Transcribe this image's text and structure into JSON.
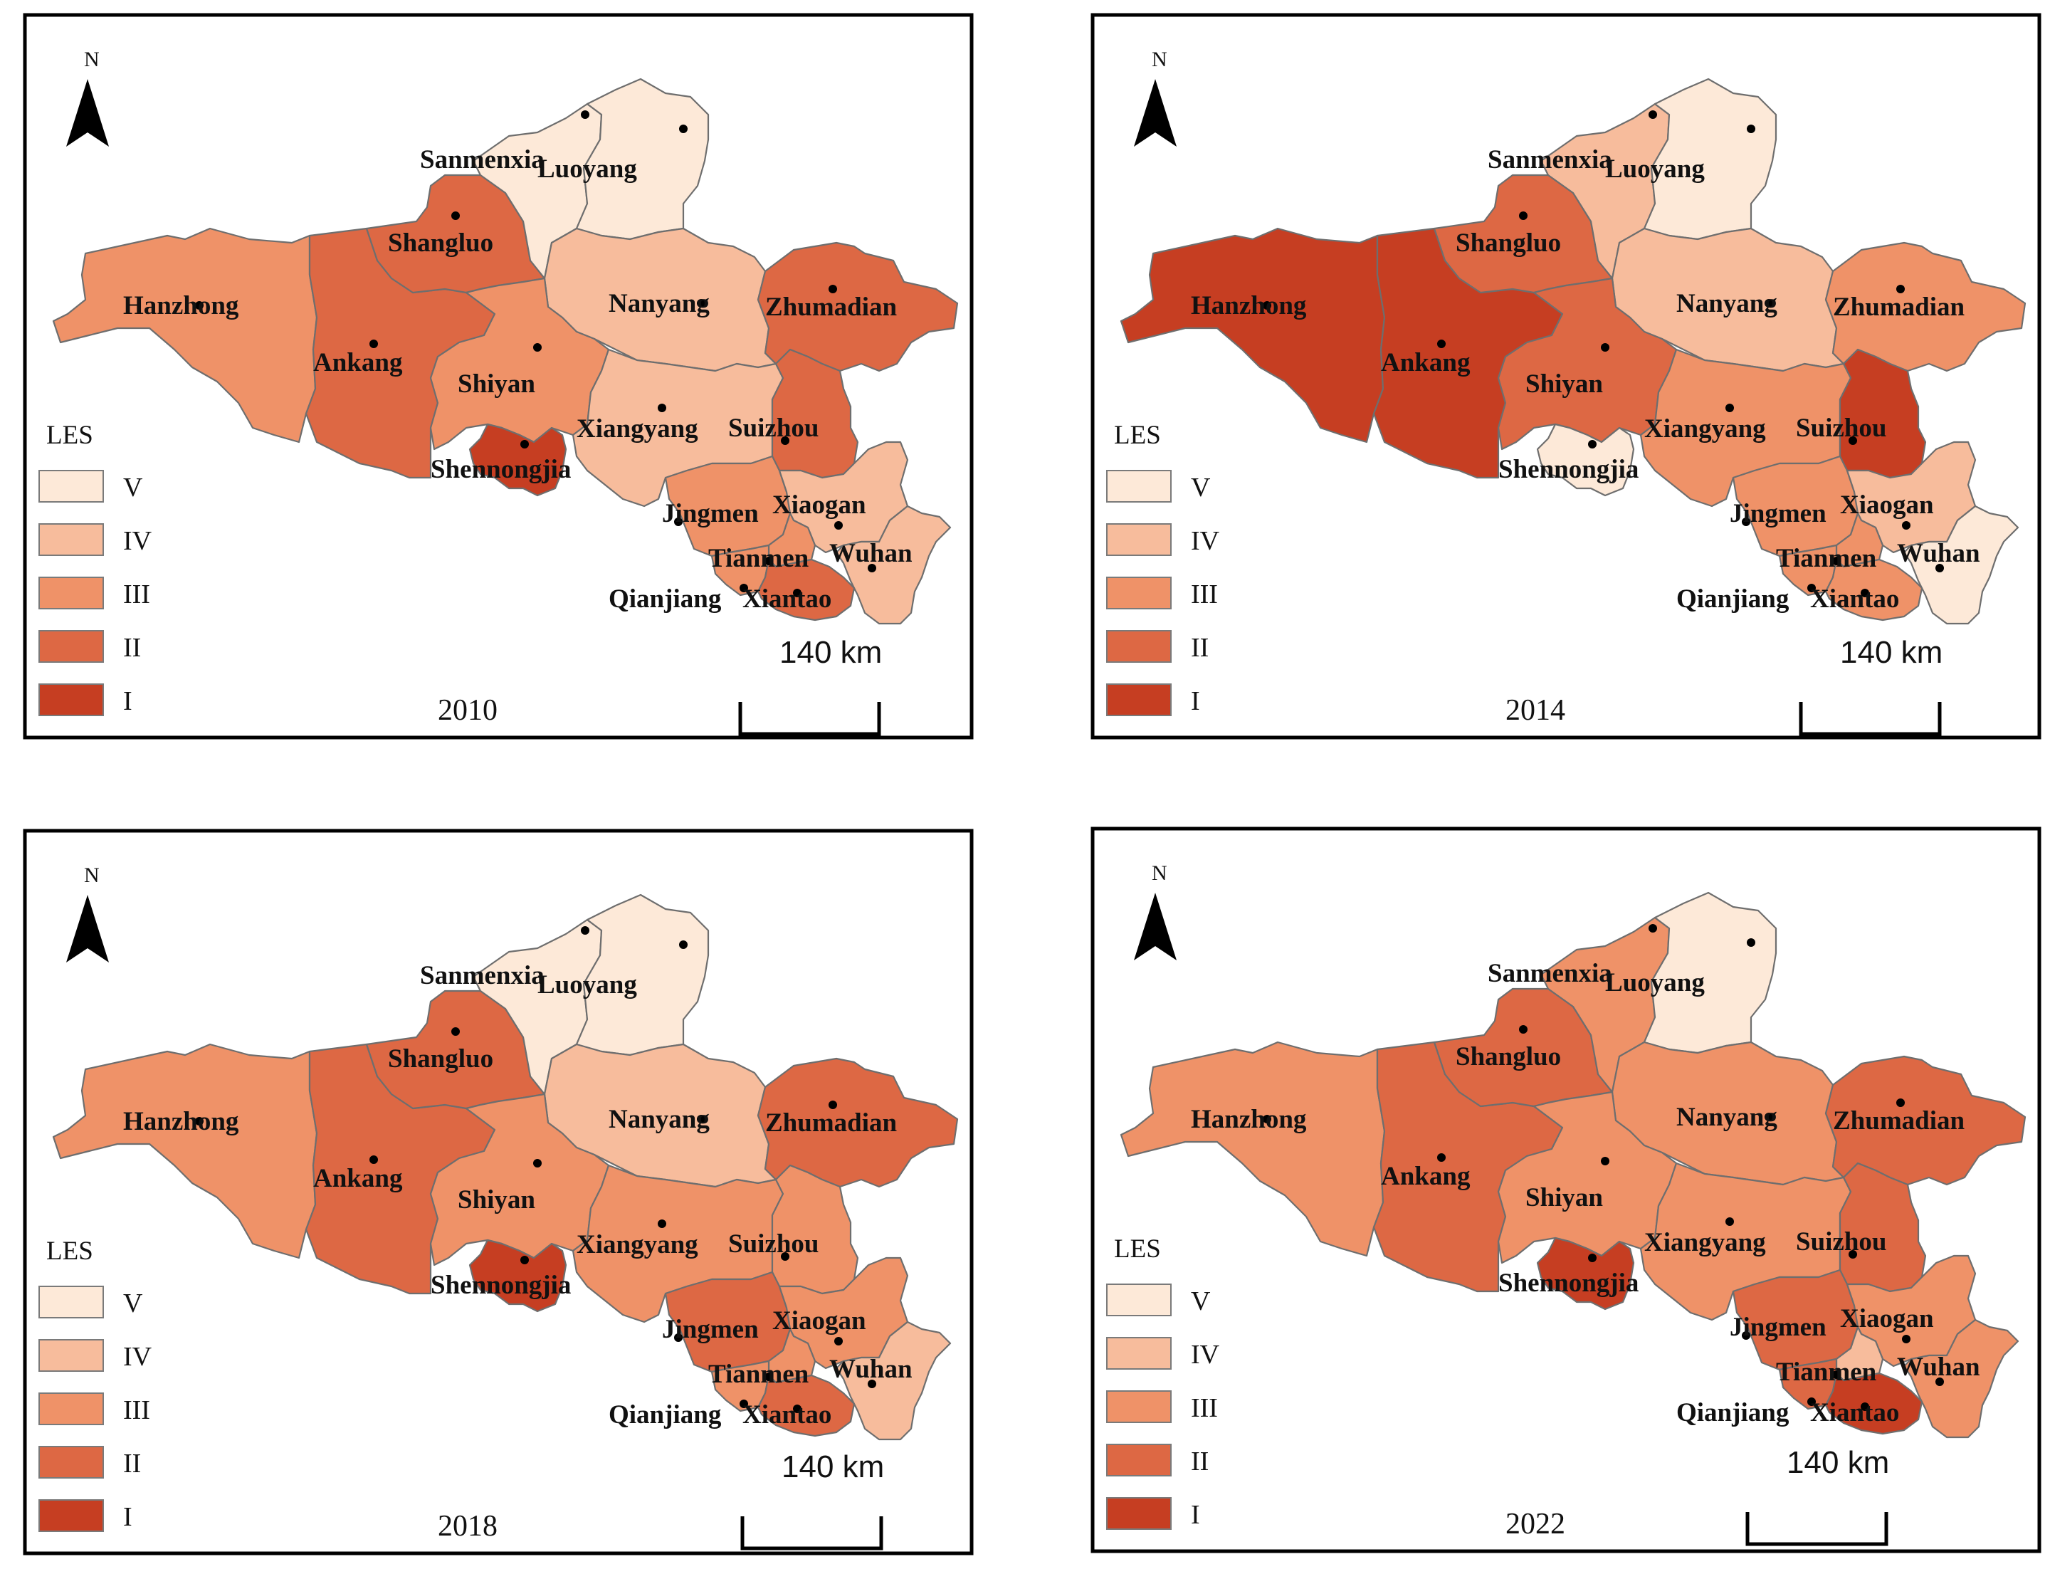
{
  "figure": {
    "legend_title": "LES",
    "scale_text": "140 km",
    "north_label": "N",
    "classes": [
      {
        "label": "V",
        "color": "#fde9d8"
      },
      {
        "label": "IV",
        "color": "#f7bc9c"
      },
      {
        "label": "III",
        "color": "#ef9268"
      },
      {
        "label": "II",
        "color": "#dd6844"
      },
      {
        "label": "I",
        "color": "#c63e22"
      }
    ]
  },
  "cities": [
    {
      "id": "sanmenxia",
      "name": "Sanmenxia"
    },
    {
      "id": "luoyang",
      "name": "Luoyang"
    },
    {
      "id": "shangluo",
      "name": "Shangluo"
    },
    {
      "id": "hanzhong",
      "name": "Hanzhong"
    },
    {
      "id": "ankang",
      "name": "Ankang"
    },
    {
      "id": "shiyan",
      "name": "Shiyan"
    },
    {
      "id": "nanyang",
      "name": "Nanyang"
    },
    {
      "id": "zhumadian",
      "name": "Zhumadian"
    },
    {
      "id": "xiangyang",
      "name": "Xiangyang"
    },
    {
      "id": "suizhou",
      "name": "Suizhou"
    },
    {
      "id": "shennongjia",
      "name": "Shennongjia"
    },
    {
      "id": "jingmen",
      "name": "Jingmen"
    },
    {
      "id": "xiaogan",
      "name": "Xiaogan"
    },
    {
      "id": "tianmen",
      "name": "Tianmen"
    },
    {
      "id": "wuhan",
      "name": "Wuhan"
    },
    {
      "id": "qianjiang",
      "name": "Qianjiang"
    },
    {
      "id": "xiantao",
      "name": "Xiantao"
    }
  ],
  "panels": [
    {
      "year": "2010",
      "levels": {
        "sanmenxia": "V",
        "luoyang": "V",
        "shangluo": "II",
        "hanzhong": "III",
        "ankang": "II",
        "shiyan": "III",
        "nanyang": "IV",
        "zhumadian": "II",
        "xiangyang": "IV",
        "suizhou": "II",
        "shennongjia": "I",
        "jingmen": "III",
        "xiaogan": "IV",
        "tianmen": "III",
        "wuhan": "IV",
        "qianjiang": "III",
        "xiantao": "II"
      }
    },
    {
      "year": "2014",
      "levels": {
        "sanmenxia": "IV",
        "luoyang": "V",
        "shangluo": "II",
        "hanzhong": "I",
        "ankang": "I",
        "shiyan": "II",
        "nanyang": "IV",
        "zhumadian": "III",
        "xiangyang": "III",
        "suizhou": "I",
        "shennongjia": "V",
        "jingmen": "III",
        "xiaogan": "IV",
        "tianmen": "III",
        "wuhan": "V",
        "qianjiang": "III",
        "xiantao": "III"
      }
    },
    {
      "year": "2018",
      "levels": {
        "sanmenxia": "V",
        "luoyang": "V",
        "shangluo": "II",
        "hanzhong": "III",
        "ankang": "II",
        "shiyan": "III",
        "nanyang": "IV",
        "zhumadian": "II",
        "xiangyang": "III",
        "suizhou": "III",
        "shennongjia": "I",
        "jingmen": "II",
        "xiaogan": "III",
        "tianmen": "III",
        "wuhan": "IV",
        "qianjiang": "III",
        "xiantao": "II"
      }
    },
    {
      "year": "2022",
      "levels": {
        "sanmenxia": "III",
        "luoyang": "V",
        "shangluo": "II",
        "hanzhong": "III",
        "ankang": "II",
        "shiyan": "III",
        "nanyang": "III",
        "zhumadian": "II",
        "xiangyang": "III",
        "suizhou": "II",
        "shennongjia": "I",
        "jingmen": "II",
        "xiaogan": "III",
        "tianmen": "IV",
        "wuhan": "III",
        "qianjiang": "II",
        "xiantao": "I"
      }
    }
  ]
}
